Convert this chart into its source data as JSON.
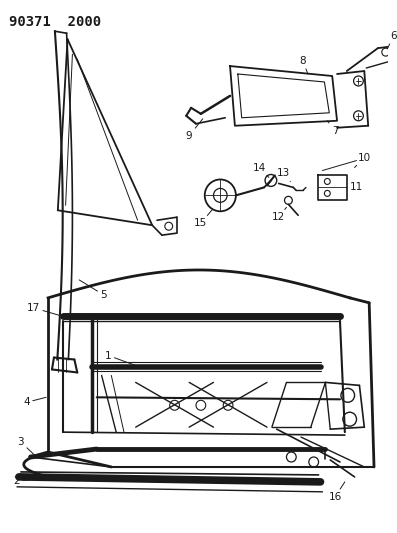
{
  "title": "90371  2000",
  "bg_color": "#ffffff",
  "line_color": "#1a1a1a",
  "label_fontsize": 7.5,
  "title_fontsize": 10
}
